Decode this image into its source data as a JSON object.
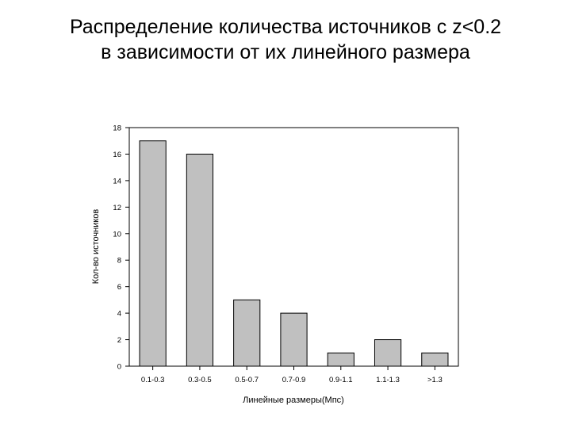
{
  "slide": {
    "title_line1": "Распределение количества источников с z<0.2",
    "title_line2": "в зависимости от их линейного размера"
  },
  "chart_data": {
    "type": "bar",
    "categories": [
      "0.1-0.3",
      "0.3-0.5",
      "0.5-0.7",
      "0.7-0.9",
      "0.9-1.1",
      "1.1-1.3",
      ">1.3"
    ],
    "values": [
      17,
      16,
      5,
      4,
      1,
      2,
      1
    ],
    "xlabel": "Линейные размеры(Мпс)",
    "ylabel": "Кол-во источников",
    "ylim": [
      0,
      18
    ],
    "yticks": [
      0,
      2,
      4,
      6,
      8,
      10,
      12,
      14,
      16,
      18
    ],
    "grid": false,
    "bar_color": "#c0c0c0",
    "edge_color": "#000000"
  }
}
